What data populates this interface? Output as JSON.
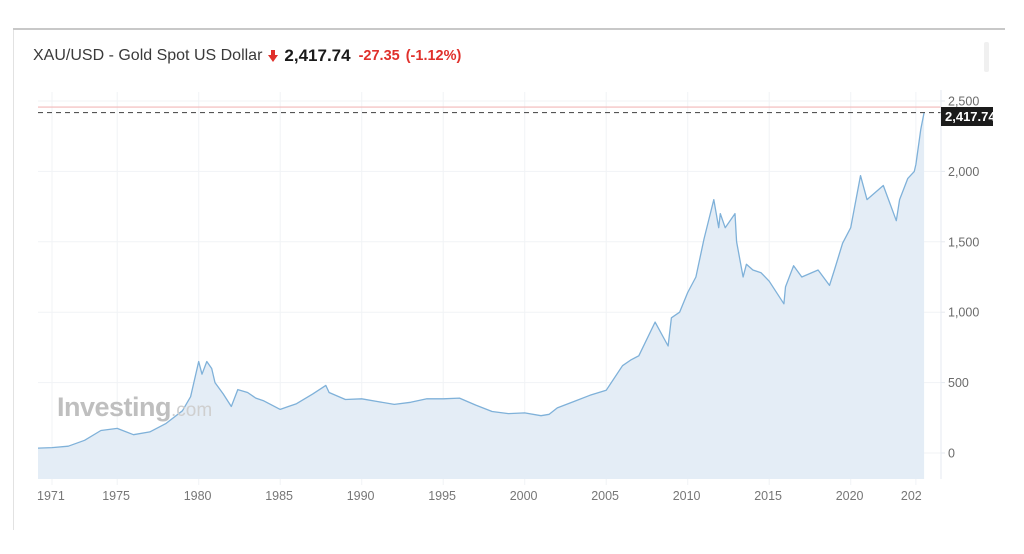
{
  "header": {
    "title": "XAU/USD - Gold Spot US Dollar",
    "direction_icon": "down-arrow-icon",
    "price": "2,417.74",
    "change": "-27.35",
    "change_pct": "(-1.12%)",
    "colors": {
      "down": "#e0302b",
      "price": "#1a1a1a",
      "title": "#3a3a3a"
    }
  },
  "last_price_tag": "2,417.74",
  "watermark": {
    "brand": "Investing",
    "suffix": ".com"
  },
  "y_axis": {
    "ticks": [
      "0",
      "500",
      "1,000",
      "1,500",
      "2,000",
      "2,500"
    ]
  },
  "x_axis": {
    "ticks": [
      "1971",
      "1975",
      "1980",
      "1985",
      "1990",
      "1995",
      "2000",
      "2005",
      "2010",
      "2015",
      "2020",
      "202"
    ]
  },
  "chart_data": {
    "type": "area",
    "title": "XAU/USD - Gold Spot US Dollar",
    "xlabel": "",
    "ylabel": "",
    "ylim": [
      -180,
      2550
    ],
    "xlim": [
      1970.1,
      2025.0
    ],
    "grid": true,
    "legend": "none",
    "line_color": "#7fb1d9",
    "fill_color": "#e4edf6",
    "reference_lines": [
      {
        "type": "last_price",
        "value": 2417.74,
        "style": "dashed",
        "color": "#555555"
      },
      {
        "type": "high",
        "value": 2450,
        "style": "solid",
        "color": "#f2b8b8"
      }
    ],
    "x": [
      1970.1,
      1971,
      1972,
      1973,
      1974,
      1975,
      1976,
      1977,
      1978,
      1979,
      1979.5,
      1980.0,
      1980.2,
      1980.5,
      1980.8,
      1981,
      1981.5,
      1982,
      1982.4,
      1983,
      1983.5,
      1984,
      1985,
      1985.5,
      1986,
      1987,
      1987.8,
      1988,
      1989,
      1990,
      1991,
      1992,
      1993,
      1994,
      1995,
      1996,
      1997,
      1998,
      1999,
      2000,
      2001,
      2001.5,
      2002,
      2003,
      2004,
      2005,
      2006,
      2006.5,
      2007,
      2008,
      2008.8,
      2009,
      2009.5,
      2010,
      2010.5,
      2011,
      2011.6,
      2011.9,
      2012,
      2012.3,
      2012.9,
      2013,
      2013.4,
      2013.6,
      2014,
      2014.5,
      2015,
      2015.9,
      2016,
      2016.5,
      2017,
      2018,
      2018.7,
      2019,
      2019.5,
      2020,
      2020.6,
      2021,
      2021.5,
      2022,
      2022.8,
      2023,
      2023.5,
      2023.9,
      2024,
      2024.3,
      2024.5
    ],
    "values": [
      35,
      38,
      48,
      90,
      160,
      175,
      130,
      150,
      210,
      300,
      400,
      650,
      560,
      650,
      600,
      500,
      420,
      330,
      450,
      430,
      390,
      370,
      310,
      330,
      350,
      420,
      480,
      430,
      380,
      385,
      365,
      345,
      360,
      385,
      385,
      390,
      340,
      295,
      280,
      285,
      265,
      275,
      320,
      365,
      410,
      445,
      620,
      660,
      690,
      930,
      760,
      960,
      1000,
      1140,
      1250,
      1520,
      1800,
      1600,
      1700,
      1600,
      1700,
      1500,
      1250,
      1340,
      1300,
      1280,
      1220,
      1060,
      1180,
      1330,
      1250,
      1300,
      1190,
      1300,
      1490,
      1600,
      1970,
      1800,
      1850,
      1900,
      1650,
      1800,
      1950,
      2000,
      2050,
      2300,
      2418
    ]
  }
}
